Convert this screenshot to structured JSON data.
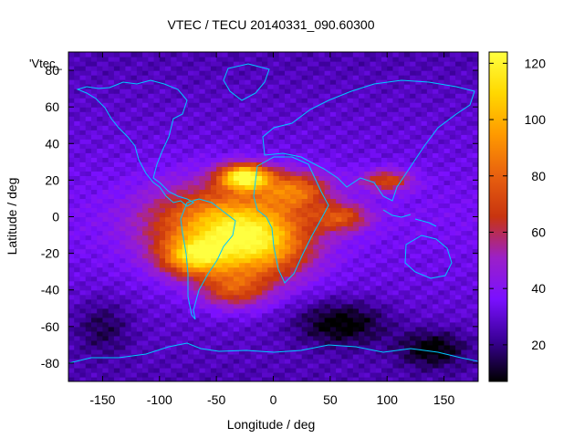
{
  "chart_data": {
    "type": "heatmap",
    "title": "VTEC / TECU 20140331_090.60300",
    "xlabel": "Longitude / deg",
    "ylabel": "Latitude / deg",
    "series_label": "'Vtec_",
    "xlim": [
      -180,
      180
    ],
    "ylim": [
      -90,
      90
    ],
    "x_ticks": [
      -150,
      -100,
      -50,
      0,
      50,
      100,
      150
    ],
    "y_ticks": [
      -80,
      -60,
      -40,
      -20,
      0,
      20,
      40,
      60,
      80
    ],
    "colorbar": {
      "range": [
        7,
        124
      ],
      "ticks": [
        20,
        40,
        60,
        80,
        100,
        120
      ],
      "palette": [
        "#000000",
        "#3a0096",
        "#7a10ff",
        "#9b20c8",
        "#c8340f",
        "#e8600f",
        "#ff9a00",
        "#ffd800",
        "#ffff40"
      ]
    },
    "grid": false,
    "legend": "top-left",
    "enhancement_regions": [
      {
        "lon": -25,
        "lat": 22,
        "peak_tecu": 122,
        "width_lon": 22,
        "width_lat": 7
      },
      {
        "lon": -50,
        "lat": -5,
        "peak_tecu": 96,
        "width_lon": 60,
        "width_lat": 22
      },
      {
        "lon": -10,
        "lat": -15,
        "peak_tecu": 90,
        "width_lon": 45,
        "width_lat": 20
      },
      {
        "lon": -70,
        "lat": -22,
        "peak_tecu": 88,
        "width_lon": 28,
        "width_lat": 10
      },
      {
        "lon": 20,
        "lat": 15,
        "peak_tecu": 80,
        "width_lon": 30,
        "width_lat": 10
      },
      {
        "lon": 60,
        "lat": 0,
        "peak_tecu": 72,
        "width_lon": 25,
        "width_lat": 8
      },
      {
        "lon": 100,
        "lat": 20,
        "peak_tecu": 74,
        "width_lon": 22,
        "width_lat": 6
      },
      {
        "lon": -35,
        "lat": -40,
        "peak_tecu": 70,
        "width_lon": 30,
        "width_lat": 10
      }
    ],
    "background_tecu": 36,
    "depletion_regions": [
      {
        "lon": 60,
        "lat": -58,
        "low_tecu": 12,
        "width_lon": 40,
        "width_lat": 12
      },
      {
        "lon": 140,
        "lat": -72,
        "low_tecu": 14,
        "width_lon": 30,
        "width_lat": 10
      },
      {
        "lon": -150,
        "lat": -60,
        "low_tecu": 22,
        "width_lon": 25,
        "width_lat": 15
      }
    ]
  }
}
